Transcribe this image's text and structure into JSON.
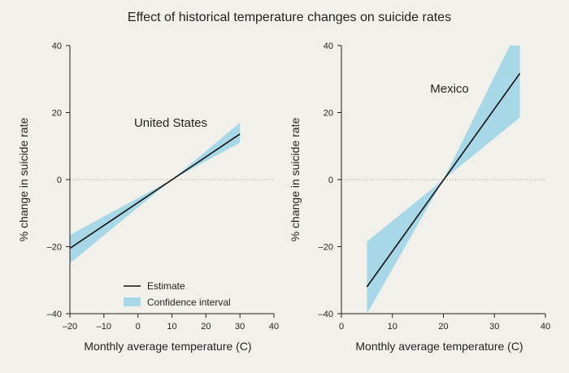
{
  "colors": {
    "background": "#f2f0eb",
    "band": "#a8d8e8",
    "estimate": "#111111",
    "axis": "#231f20",
    "reference": "#9a9a9a"
  },
  "chart_data": {
    "type": "line",
    "title": "Effect of historical temperature changes on suicide rates",
    "legend": {
      "placement": "bottom-left of first panel",
      "entries": [
        {
          "label": "Estimate",
          "kind": "line"
        },
        {
          "label": "Confidence interval",
          "kind": "band"
        }
      ]
    },
    "panels": [
      {
        "label": "United States",
        "xlabel": "Monthly average temperature (C)",
        "ylabel": "% change in suicide rate",
        "xlim": [
          -20,
          40
        ],
        "ylim": [
          -40,
          40
        ],
        "xticks": [
          -20,
          -10,
          0,
          10,
          20,
          30,
          40
        ],
        "yticks": [
          -40,
          -20,
          0,
          20,
          40
        ],
        "reference_line_y": 0,
        "estimate": {
          "x": [
            -20,
            30
          ],
          "y": [
            -20.5,
            13.6
          ]
        },
        "ci": {
          "x": [
            -20,
            10,
            30
          ],
          "lower": [
            -25,
            0,
            11
          ],
          "upper": [
            -16.5,
            0,
            17
          ]
        }
      },
      {
        "label": "Mexico",
        "xlabel": "Monthly average temperature (C)",
        "ylabel": "% change in suicide rate",
        "xlim": [
          0,
          40
        ],
        "ylim": [
          -40,
          40
        ],
        "xticks": [
          0,
          10,
          20,
          30,
          40
        ],
        "yticks": [
          -40,
          -20,
          0,
          20,
          40
        ],
        "reference_line_y": 0,
        "estimate": {
          "x": [
            5,
            35
          ],
          "y": [
            -32,
            31.7
          ]
        },
        "ci": {
          "x": [
            5,
            20,
            33,
            35
          ],
          "lower": [
            -40,
            0,
            null,
            18.5
          ],
          "upper": [
            -18.5,
            0,
            40,
            40
          ]
        }
      }
    ]
  }
}
